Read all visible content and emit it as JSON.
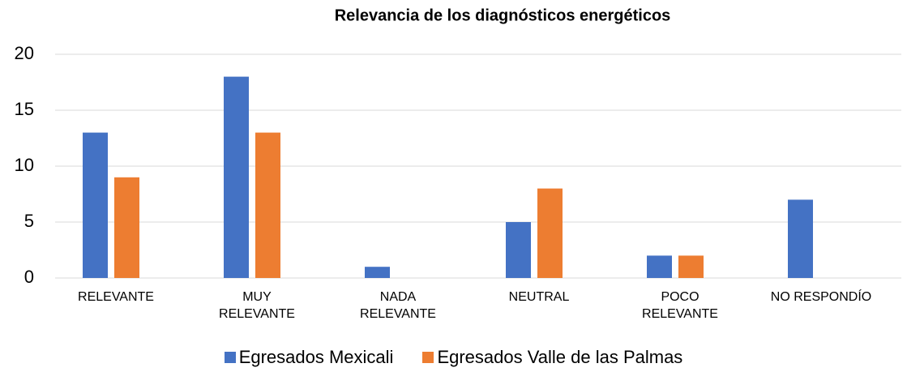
{
  "chart_data": {
    "type": "bar",
    "title": "Relevancia de los diagnósticos energéticos",
    "categories": [
      "RELEVANTE",
      "MUY RELEVANTE",
      "NADA RELEVANTE",
      "NEUTRAL",
      "POCO RELEVANTE",
      "NO RESPONDÍO"
    ],
    "series": [
      {
        "name": "Egresados Mexicali",
        "color": "#4472c4",
        "values": [
          13,
          18,
          1,
          5,
          2,
          7
        ]
      },
      {
        "name": "Egresados Valle de las Palmas",
        "color": "#ed7d31",
        "values": [
          9,
          13,
          0,
          8,
          2,
          0
        ]
      }
    ],
    "ylim": [
      0,
      20
    ],
    "yticks": [
      0,
      5,
      10,
      15,
      20
    ],
    "grid": true,
    "legend": "bottom"
  }
}
